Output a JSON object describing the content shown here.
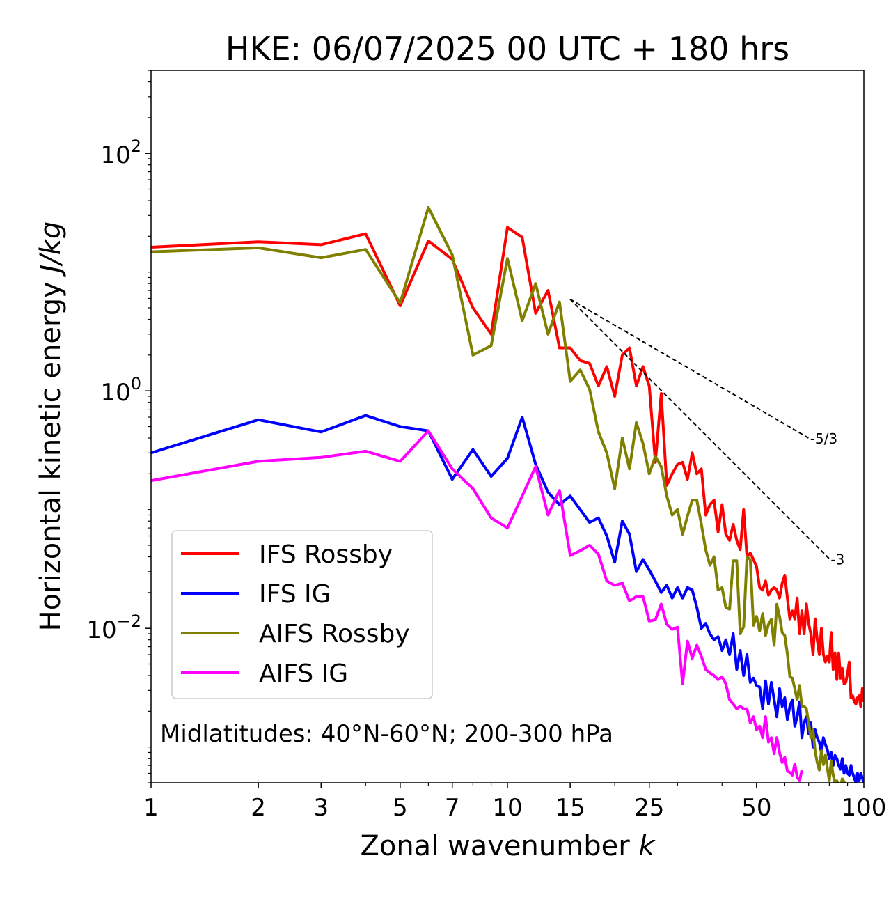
{
  "chart_data": {
    "type": "line",
    "title": "HKE: 06/07/2025 00 UTC + 180 hrs",
    "xlabel": "Zonal wavenumber",
    "xlabel_symbol": "k",
    "ylabel": "Horizontal kinetic energy",
    "ylabel_units": "J/kg",
    "xscale": "log",
    "yscale": "log",
    "xlim": [
      1,
      100
    ],
    "ylim": [
      0.0005,
      500
    ],
    "x_ticks": [
      1,
      2,
      3,
      5,
      7,
      10,
      15,
      25,
      50,
      100
    ],
    "x_tick_labels": [
      "1",
      "2",
      "3",
      "5",
      "7",
      "10",
      "15",
      "25",
      "50",
      "100"
    ],
    "y_ticks": [
      0.01,
      1,
      100
    ],
    "y_tick_labels": [
      {
        "base": "10",
        "exp": "−2"
      },
      {
        "base": "10",
        "exp": "0"
      },
      {
        "base": "10",
        "exp": "2"
      }
    ],
    "annotation": "Midlatitudes: 40°N-60°N; 200-300 hPa",
    "legend_position": "lower-left",
    "series": [
      {
        "name": "IFS Rossby",
        "color": "#ff0000",
        "x": [
          1,
          2,
          3,
          4,
          5,
          6,
          7,
          8,
          9,
          10,
          11,
          12,
          13,
          14,
          15,
          16,
          17,
          18,
          19,
          20,
          21,
          22,
          23,
          24,
          25,
          26,
          27,
          28,
          29,
          30,
          31,
          32,
          33,
          34,
          35,
          36,
          37,
          38,
          39,
          40,
          41,
          42,
          43,
          44,
          45,
          46,
          47,
          48,
          49,
          50,
          51,
          52,
          53,
          54,
          55,
          56,
          57,
          58,
          59,
          60,
          61,
          62,
          63,
          64,
          65,
          66,
          67,
          68,
          69,
          70,
          71,
          72,
          73,
          74,
          75,
          76,
          77,
          78,
          79,
          80,
          81,
          82,
          83,
          84,
          85,
          86,
          87,
          88,
          89,
          90,
          91,
          92,
          93,
          94,
          95,
          96,
          97,
          98,
          99,
          100
        ],
        "values": [
          16.2,
          18.0,
          17.0,
          21.0,
          5.2,
          18.3,
          12.8,
          5.0,
          3.0,
          23.8,
          19.6,
          4.5,
          7.0,
          2.3,
          2.3,
          1.8,
          1.7,
          1.1,
          1.6,
          0.9,
          2.0,
          2.3,
          1.1,
          1.6,
          1.1,
          0.25,
          0.95,
          0.16,
          0.2,
          0.24,
          0.25,
          0.18,
          0.3,
          0.2,
          0.22,
          0.09,
          0.11,
          0.12,
          0.065,
          0.11,
          0.062,
          0.055,
          0.075,
          0.055,
          0.046,
          0.1,
          0.04,
          0.043,
          0.038,
          0.033,
          0.022,
          0.021,
          0.025,
          0.019,
          0.021,
          0.022,
          0.021,
          0.018,
          0.024,
          0.028,
          0.018,
          0.012,
          0.014,
          0.012,
          0.018,
          0.009,
          0.014,
          0.009,
          0.016,
          0.011,
          0.009,
          0.006,
          0.012,
          0.008,
          0.006,
          0.01,
          0.006,
          0.0052,
          0.0058,
          0.0052,
          0.0092,
          0.0045,
          0.0062,
          0.0037,
          0.0062,
          0.0038,
          0.0046,
          0.0034,
          0.0035,
          0.0042,
          0.0052,
          0.0026,
          0.0027,
          0.0024,
          0.0023,
          0.0026,
          0.0027,
          0.0022,
          0.0031,
          0.0024
        ]
      },
      {
        "name": "IFS IG",
        "color": "#0000ff",
        "x": [
          1,
          2,
          3,
          4,
          5,
          6,
          7,
          8,
          9,
          10,
          11,
          12,
          13,
          14,
          15,
          16,
          17,
          18,
          19,
          20,
          21,
          22,
          23,
          24,
          25,
          26,
          27,
          28,
          29,
          30,
          31,
          32,
          33,
          34,
          35,
          36,
          37,
          38,
          39,
          40,
          41,
          42,
          43,
          44,
          45,
          46,
          47,
          48,
          49,
          50,
          51,
          52,
          53,
          54,
          55,
          56,
          57,
          58,
          59,
          60,
          61,
          62,
          63,
          64,
          65,
          66,
          67,
          68,
          69,
          70,
          71,
          72,
          73,
          74,
          75,
          76,
          77,
          78,
          79,
          80,
          81,
          82,
          83,
          84,
          85,
          86,
          87,
          88,
          89,
          90,
          91,
          92,
          93,
          94,
          95,
          96,
          97,
          98,
          99,
          100
        ],
        "values": [
          0.3,
          0.57,
          0.45,
          0.62,
          0.5,
          0.46,
          0.18,
          0.32,
          0.19,
          0.27,
          0.6,
          0.24,
          0.14,
          0.11,
          0.13,
          0.1,
          0.078,
          0.085,
          0.06,
          0.036,
          0.08,
          0.062,
          0.03,
          0.038,
          0.031,
          0.025,
          0.02,
          0.023,
          0.018,
          0.022,
          0.018,
          0.022,
          0.021,
          0.015,
          0.01,
          0.011,
          0.009,
          0.008,
          0.0085,
          0.0065,
          0.008,
          0.006,
          0.009,
          0.0045,
          0.0065,
          0.004,
          0.006,
          0.0035,
          0.0038,
          0.0033,
          0.0032,
          0.0021,
          0.0036,
          0.0023,
          0.0035,
          0.0025,
          0.0018,
          0.0031,
          0.0022,
          0.0026,
          0.0017,
          0.0022,
          0.0025,
          0.0015,
          0.0018,
          0.0024,
          0.0012,
          0.0016,
          0.0018,
          0.0013,
          0.0016,
          0.001,
          0.0014,
          0.0012,
          0.0011,
          0.0009,
          0.0012,
          0.00105,
          0.00095,
          0.0008,
          0.0009,
          0.0007,
          0.00085,
          0.0008,
          0.0007,
          0.00065,
          0.0008,
          0.0006,
          0.0007,
          0.0006,
          0.00058,
          0.0007,
          0.0006,
          0.00055,
          0.0005,
          0.0006,
          0.00052,
          0.0006,
          0.00055,
          0.0005
        ]
      },
      {
        "name": "AIFS Rossby",
        "color": "#808000",
        "x": [
          1,
          2,
          3,
          4,
          5,
          6,
          7,
          8,
          9,
          10,
          11,
          12,
          13,
          14,
          15,
          16,
          17,
          18,
          19,
          20,
          21,
          22,
          23,
          24,
          25,
          26,
          27,
          28,
          29,
          30,
          31,
          32,
          33,
          34,
          35,
          36,
          37,
          38,
          39,
          40,
          41,
          42,
          43,
          44,
          45,
          46,
          47,
          48,
          49,
          50,
          51,
          52,
          53,
          54,
          55,
          56,
          57,
          58,
          59,
          60,
          61,
          62,
          63,
          64,
          65,
          66,
          67,
          68,
          69,
          70,
          71,
          72,
          73,
          74,
          75,
          76,
          77,
          78,
          79,
          80,
          81,
          82,
          83,
          84,
          85,
          86,
          87,
          88,
          89,
          90,
          91,
          92,
          93,
          94,
          95,
          96,
          97,
          98,
          99,
          100
        ],
        "values": [
          14.8,
          16.0,
          13.2,
          15.5,
          5.5,
          35.0,
          14.0,
          2.0,
          2.4,
          13.0,
          3.9,
          8.0,
          3.0,
          5.6,
          1.2,
          1.5,
          1.03,
          0.45,
          0.3,
          0.15,
          0.4,
          0.22,
          0.54,
          0.36,
          0.2,
          0.28,
          0.23,
          0.13,
          0.09,
          0.1,
          0.062,
          0.088,
          0.12,
          0.12,
          0.075,
          0.046,
          0.034,
          0.04,
          0.021,
          0.022,
          0.015,
          0.0145,
          0.037,
          0.037,
          0.009,
          0.0103,
          0.04,
          0.038,
          0.0106,
          0.0126,
          0.0095,
          0.0133,
          0.0087,
          0.0108,
          0.0119,
          0.0072,
          0.0159,
          0.0126,
          0.0092,
          0.0087,
          0.0061,
          0.0039,
          0.0038,
          0.0031,
          0.0025,
          0.0033,
          0.0022,
          0.0022,
          0.0021,
          0.0016,
          0.0012,
          0.0014,
          0.00092,
          0.00074,
          0.00064,
          0.00093,
          0.00071,
          0.00086,
          0.00066,
          0.00052,
          0.00076,
          0.00058,
          0.0005,
          0.00052,
          0.00048,
          0.00046,
          0.00054,
          0.00051,
          0.00045,
          0.00048,
          0.00044,
          0.00049,
          0.00045,
          0.00043,
          0.00047,
          0.00045,
          0.00044,
          0.00046,
          0.00045,
          0.00044
        ]
      },
      {
        "name": "AIFS IG",
        "color": "#ff00ff",
        "x": [
          1,
          2,
          3,
          4,
          5,
          6,
          7,
          8,
          9,
          10,
          11,
          12,
          13,
          14,
          15,
          16,
          17,
          18,
          19,
          20,
          21,
          22,
          23,
          24,
          25,
          26,
          27,
          28,
          29,
          30,
          31,
          32,
          33,
          34,
          35,
          36,
          37,
          38,
          39,
          40,
          41,
          42,
          43,
          44,
          45,
          46,
          47,
          48,
          49,
          50,
          51,
          52,
          53,
          54,
          55,
          56,
          57,
          58,
          59,
          60,
          61,
          62,
          63,
          64,
          65,
          66,
          67
        ],
        "values": [
          0.175,
          0.255,
          0.275,
          0.31,
          0.255,
          0.46,
          0.22,
          0.15,
          0.085,
          0.07,
          0.13,
          0.23,
          0.09,
          0.145,
          0.041,
          0.045,
          0.05,
          0.042,
          0.025,
          0.023,
          0.024,
          0.017,
          0.0185,
          0.0185,
          0.0115,
          0.0118,
          0.016,
          0.0108,
          0.0098,
          0.0102,
          0.0034,
          0.0078,
          0.0056,
          0.0072,
          0.0058,
          0.0045,
          0.0042,
          0.004,
          0.0037,
          0.0039,
          0.0034,
          0.0025,
          0.0023,
          0.0021,
          0.0022,
          0.0021,
          0.0021,
          0.0016,
          0.0018,
          0.0014,
          0.0015,
          0.0012,
          0.0018,
          0.0011,
          0.0012,
          0.00088,
          0.0012,
          0.0009,
          0.00074,
          0.00082,
          0.00063,
          0.00061,
          0.00058,
          0.00072,
          0.00056,
          0.00052,
          0.00064
        ]
      }
    ],
    "reference_slopes": [
      {
        "label": "-5/3",
        "x": [
          15,
          70
        ],
        "y": [
          5.9,
          0.4
        ]
      },
      {
        "label": "-3",
        "x": [
          15,
          80
        ],
        "y": [
          5.9,
          0.0385
        ]
      }
    ]
  }
}
